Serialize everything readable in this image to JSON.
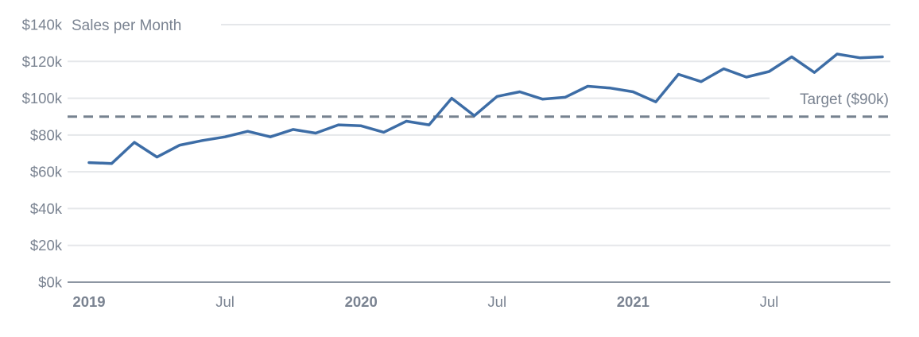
{
  "chart_data": {
    "type": "line",
    "title": "Sales per Month",
    "legend": "none",
    "grid": true,
    "ylim": [
      0,
      140
    ],
    "y_unit": "$k",
    "y_ticks": [
      {
        "label": "$0k",
        "value": 0
      },
      {
        "label": "$20k",
        "value": 20
      },
      {
        "label": "$40k",
        "value": 40
      },
      {
        "label": "$60k",
        "value": 60
      },
      {
        "label": "$80k",
        "value": 80
      },
      {
        "label": "$100k",
        "value": 100
      },
      {
        "label": "$120k",
        "value": 120
      },
      {
        "label": "$140k",
        "value": 140
      }
    ],
    "x_ticks": [
      {
        "label": "2019",
        "month_index": 0,
        "bold": true
      },
      {
        "label": "Jul",
        "month_index": 6,
        "bold": false
      },
      {
        "label": "2020",
        "month_index": 12,
        "bold": true
      },
      {
        "label": "Jul",
        "month_index": 18,
        "bold": false
      },
      {
        "label": "2021",
        "month_index": 24,
        "bold": true
      },
      {
        "label": "Jul",
        "month_index": 30,
        "bold": false
      }
    ],
    "x": [
      "Jan 2019",
      "Feb 2019",
      "Mar 2019",
      "Apr 2019",
      "May 2019",
      "Jun 2019",
      "Jul 2019",
      "Aug 2019",
      "Sep 2019",
      "Oct 2019",
      "Nov 2019",
      "Dec 2019",
      "Jan 2020",
      "Feb 2020",
      "Mar 2020",
      "Apr 2020",
      "May 2020",
      "Jun 2020",
      "Jul 2020",
      "Aug 2020",
      "Sep 2020",
      "Oct 2020",
      "Nov 2020",
      "Dec 2020",
      "Jan 2021",
      "Feb 2021",
      "Mar 2021",
      "Apr 2021",
      "May 2021",
      "Jun 2021",
      "Jul 2021",
      "Aug 2021",
      "Sep 2021",
      "Oct 2021",
      "Nov 2021",
      "Dec 2021"
    ],
    "series": [
      {
        "name": "Sales per Month",
        "values": [
          65,
          64.5,
          76,
          68,
          74.5,
          77,
          79,
          82,
          79,
          83,
          81,
          85.5,
          85,
          81.5,
          87.5,
          85.5,
          100,
          90.5,
          101,
          103.5,
          99.5,
          100.5,
          106.5,
          105.5,
          103.5,
          98,
          113,
          109,
          116,
          111.5,
          114.5,
          122.5,
          114,
          124,
          122,
          122.5
        ]
      }
    ],
    "target": {
      "value": 90,
      "label": "Target ($90k)"
    },
    "colors": {
      "line": "#3d6da6",
      "target": "#76828f",
      "grid": "#e5e7ea",
      "axis": "#8d96a2",
      "text": "#7a8391",
      "background": "#ffffff"
    }
  }
}
